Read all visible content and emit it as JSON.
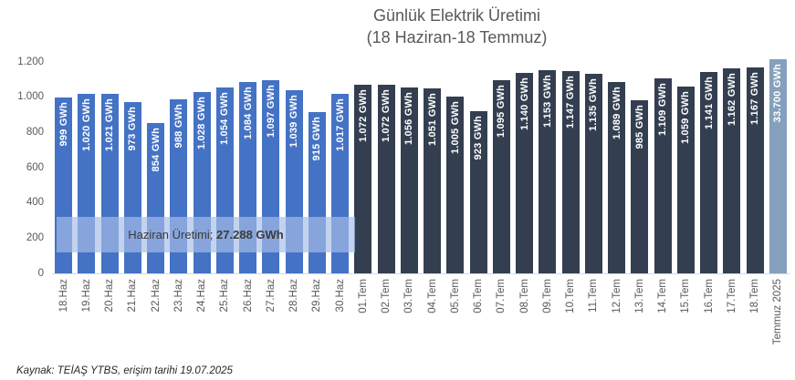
{
  "title": {
    "line1": "Günlük Elektrik Üretimi",
    "line2": "(18 Haziran-18 Temmuz)"
  },
  "source_note": "Kaynak: TEİAŞ YTBS, erişim tarihi 19.07.2025",
  "annotation": {
    "label": "Haziran Üretimi;",
    "value": "27.288 GWh"
  },
  "colors": {
    "june_bar": "#4472C4",
    "july_bar": "#333F50",
    "month_total_bar": "#84A0BD",
    "band_fill": "rgba(166,190,231,0.68)",
    "axis_text": "#595959",
    "bar_label_text": "#FFFFFF"
  },
  "y_axis": {
    "ticks": [
      "1.200",
      "1.000",
      "800",
      "600",
      "400",
      "200",
      "0"
    ],
    "tick_values": [
      1200,
      1000,
      800,
      600,
      400,
      200,
      0
    ]
  },
  "chart_data": {
    "type": "bar",
    "title": "Günlük Elektrik Üretimi (18 Haziran-18 Temmuz)",
    "xlabel": "",
    "ylabel": "",
    "ylim": [
      0,
      1200
    ],
    "grid": false,
    "legend": false,
    "annotation": "Haziran Üretimi; 27.288 GWh",
    "groups": {
      "june": "#4472C4",
      "july": "#333F50",
      "month_total": "#84A0BD"
    },
    "bars": [
      {
        "category": "18.Haz",
        "value": 999,
        "label": "999 GWh",
        "group": "june"
      },
      {
        "category": "19.Haz",
        "value": 1020,
        "label": "1.020 GWh",
        "group": "june"
      },
      {
        "category": "20.Haz",
        "value": 1021,
        "label": "1.021 GWh",
        "group": "june"
      },
      {
        "category": "21.Haz",
        "value": 973,
        "label": "973 GWh",
        "group": "june"
      },
      {
        "category": "22.Haz",
        "value": 854,
        "label": "854 GWh",
        "group": "june"
      },
      {
        "category": "23.Haz",
        "value": 988,
        "label": "988 GWh",
        "group": "june"
      },
      {
        "category": "24.Haz",
        "value": 1028,
        "label": "1.028 GWh",
        "group": "june"
      },
      {
        "category": "25.Haz",
        "value": 1054,
        "label": "1.054 GWh",
        "group": "june"
      },
      {
        "category": "26.Haz",
        "value": 1084,
        "label": "1.084 GWh",
        "group": "june"
      },
      {
        "category": "27.Haz",
        "value": 1097,
        "label": "1.097 GWh",
        "group": "june"
      },
      {
        "category": "28.Haz",
        "value": 1039,
        "label": "1.039 GWh",
        "group": "june"
      },
      {
        "category": "29.Haz",
        "value": 915,
        "label": "915 GWh",
        "group": "june"
      },
      {
        "category": "30.Haz",
        "value": 1017,
        "label": "1.017 GWh",
        "group": "june"
      },
      {
        "category": "01.Tem",
        "value": 1072,
        "label": "1.072 GWh",
        "group": "july"
      },
      {
        "category": "02.Tem",
        "value": 1072,
        "label": "1.072 GWh",
        "group": "july"
      },
      {
        "category": "03.Tem",
        "value": 1056,
        "label": "1.056 GWh",
        "group": "july"
      },
      {
        "category": "04.Tem",
        "value": 1051,
        "label": "1.051 GWh",
        "group": "july"
      },
      {
        "category": "05.Tem",
        "value": 1005,
        "label": "1.005 GWh",
        "group": "july"
      },
      {
        "category": "06.Tem",
        "value": 923,
        "label": "923 GWh",
        "group": "july"
      },
      {
        "category": "07.Tem",
        "value": 1095,
        "label": "1.095 GWh",
        "group": "july"
      },
      {
        "category": "08.Tem",
        "value": 1140,
        "label": "1.140 GWh",
        "group": "july"
      },
      {
        "category": "09.Tem",
        "value": 1153,
        "label": "1.153 GWh",
        "group": "july"
      },
      {
        "category": "10.Tem",
        "value": 1147,
        "label": "1.147 GWh",
        "group": "july"
      },
      {
        "category": "11.Tem",
        "value": 1135,
        "label": "1.135 GWh",
        "group": "july"
      },
      {
        "category": "12.Tem",
        "value": 1089,
        "label": "1.089 GWh",
        "group": "july"
      },
      {
        "category": "13.Tem",
        "value": 985,
        "label": "985 GWh",
        "group": "july"
      },
      {
        "category": "14.Tem",
        "value": 1109,
        "label": "1.109 GWh",
        "group": "july"
      },
      {
        "category": "15.Tem",
        "value": 1059,
        "label": "1.059 GWh",
        "group": "july"
      },
      {
        "category": "16.Tem",
        "value": 1141,
        "label": "1.141 GWh",
        "group": "july"
      },
      {
        "category": "17.Tem",
        "value": 1162,
        "label": "1.162 GWh",
        "group": "july"
      },
      {
        "category": "18.Tem",
        "value": 1167,
        "label": "1.167 GWh",
        "group": "july"
      },
      {
        "category": "Temmuz 2025",
        "value": 33700,
        "label": "33.700 GWh",
        "group": "month_total"
      }
    ]
  }
}
